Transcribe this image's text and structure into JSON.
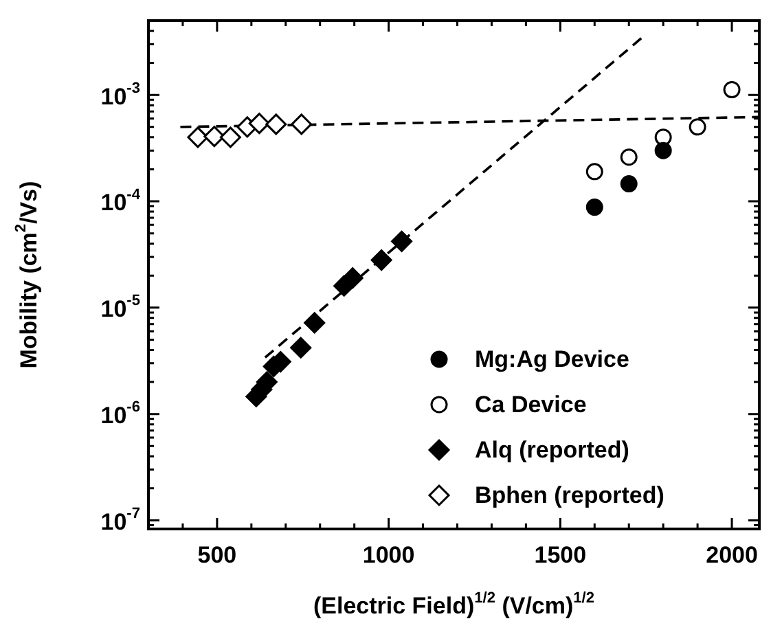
{
  "chart_data": {
    "type": "scatter",
    "xlabel": "(Electric Field)$^{1/2}$ (V/cm)$^{1/2}$",
    "ylabel": "Mobility (cm$^{2}$/Vs)",
    "xlim": [
      300,
      2080
    ],
    "ylim": [
      8.3e-08,
      0.005
    ],
    "log": "y",
    "legend": "bottom right",
    "grid": false,
    "xticks": [
      {
        "value": 300,
        "label": null
      },
      {
        "value": 400,
        "label": null
      },
      500,
      {
        "value": 600,
        "label": null
      },
      {
        "value": 700,
        "label": null
      },
      {
        "value": 800,
        "label": null
      },
      {
        "value": 900,
        "label": null
      },
      1000,
      {
        "value": 1100,
        "label": null
      },
      {
        "value": 1200,
        "label": null
      },
      {
        "value": 1300,
        "label": null
      },
      {
        "value": 1400,
        "label": null
      },
      1500,
      {
        "value": 1600,
        "label": null
      },
      {
        "value": 1700,
        "label": null
      },
      {
        "value": 1800,
        "label": null
      },
      {
        "value": 1900,
        "label": null
      },
      2000
    ],
    "yticks": [
      {
        "value": 9e-08,
        "label": null
      },
      {
        "value": 1e-07,
        "label": "10$^{-7}$"
      },
      {
        "value": 2e-07,
        "label": null
      },
      {
        "value": 3e-07,
        "label": null
      },
      {
        "value": 4e-07,
        "label": null
      },
      {
        "value": 5e-07,
        "label": null
      },
      {
        "value": 6e-07,
        "label": null
      },
      {
        "value": 7e-07,
        "label": null
      },
      {
        "value": 8e-07,
        "label": null
      },
      {
        "value": 9e-07,
        "label": null
      },
      {
        "value": 1e-06,
        "label": "10$^{-6}$"
      },
      {
        "value": 2e-06,
        "label": null
      },
      {
        "value": 3e-06,
        "label": null
      },
      {
        "value": 4e-06,
        "label": null
      },
      {
        "value": 5e-06,
        "label": null
      },
      {
        "value": 6e-06,
        "label": null
      },
      {
        "value": 7e-06,
        "label": null
      },
      {
        "value": 8e-06,
        "label": null
      },
      {
        "value": 9e-06,
        "label": null
      },
      {
        "value": 1e-05,
        "label": "10$^{-5}$"
      },
      {
        "value": 2e-05,
        "label": null
      },
      {
        "value": 3e-05,
        "label": null
      },
      {
        "value": 4e-05,
        "label": null
      },
      {
        "value": 5e-05,
        "label": null
      },
      {
        "value": 6e-05,
        "label": null
      },
      {
        "value": 7e-05,
        "label": null
      },
      {
        "value": 8e-05,
        "label": null
      },
      {
        "value": 9e-05,
        "label": null
      },
      {
        "value": 0.0001,
        "label": "10$^{-4}$"
      },
      {
        "value": 0.0002,
        "label": null
      },
      {
        "value": 0.0003,
        "label": null
      },
      {
        "value": 0.0004,
        "label": null
      },
      {
        "value": 0.0005,
        "label": null
      },
      {
        "value": 0.0006,
        "label": null
      },
      {
        "value": 0.0007,
        "label": null
      },
      {
        "value": 0.0008,
        "label": null
      },
      {
        "value": 0.0009,
        "label": null
      },
      {
        "value": 0.001,
        "label": "10$^{-3}$"
      },
      {
        "value": 0.002,
        "label": null
      },
      {
        "value": 0.003,
        "label": null
      },
      {
        "value": 0.004,
        "label": null
      },
      {
        "value": 0.005,
        "label": null
      }
    ],
    "series": [
      {
        "name": "Mg:Ag Device",
        "color": "#000000",
        "marker": "circle",
        "colors": [
          "#000000",
          "#000000",
          "#000000"
        ],
        "x": [
          1600,
          1700,
          1800
        ],
        "values": [
          8.8e-05,
          0.000146,
          0.0003
        ]
      },
      {
        "name": "Ca Device",
        "color": "#000000",
        "marker": "circle",
        "colors": [
          "#ffffff",
          "#ffffff",
          "#ffffff",
          "#ffffff",
          "#ffffff"
        ],
        "x": [
          1600,
          1700,
          1800,
          1900,
          2000
        ],
        "values": [
          0.00019,
          0.00026,
          0.0004,
          0.0005,
          0.00112
        ]
      },
      {
        "name": "Alq (reported)",
        "color": "#000000",
        "marker": "diamond",
        "colors": [
          "#000000",
          "#000000",
          "#000000",
          "#000000",
          "#000000",
          "#000000",
          "#000000",
          "#000000",
          "#000000",
          "#000000",
          "#000000"
        ],
        "x": [
          614,
          630,
          645,
          665,
          685,
          744,
          784,
          870,
          895,
          979,
          1038
        ],
        "values": [
          1.46e-06,
          1.7e-06,
          2e-06,
          2.8e-06,
          3.1e-06,
          4.2e-06,
          7.2e-06,
          1.6e-05,
          1.9e-05,
          2.8e-05,
          4.2e-05
        ]
      },
      {
        "name": "Bphen (reported)",
        "color": "#000000",
        "marker": "diamond",
        "colors": [
          "#ffffff",
          "#ffffff",
          "#ffffff",
          "#ffffff",
          "#ffffff",
          "#ffffff",
          "#ffffff"
        ],
        "x": [
          444,
          492,
          539,
          588,
          623,
          672,
          746
        ],
        "values": [
          0.0004,
          0.000407,
          0.0004,
          0.0005,
          0.00054,
          0.00053,
          0.00053
        ]
      },
      {
        "type": "line",
        "color": "#000000",
        "marker": "none",
        "line_style": "dashed",
        "x": [
          640,
          1740
        ],
        "values": [
          3.4e-06,
          0.0035
        ]
      },
      {
        "type": "line",
        "color": "#000000",
        "marker": "none",
        "line_style": "dashed",
        "x": [
          393,
          2080
        ],
        "values": [
          0.0005,
          0.00062
        ]
      }
    ]
  }
}
